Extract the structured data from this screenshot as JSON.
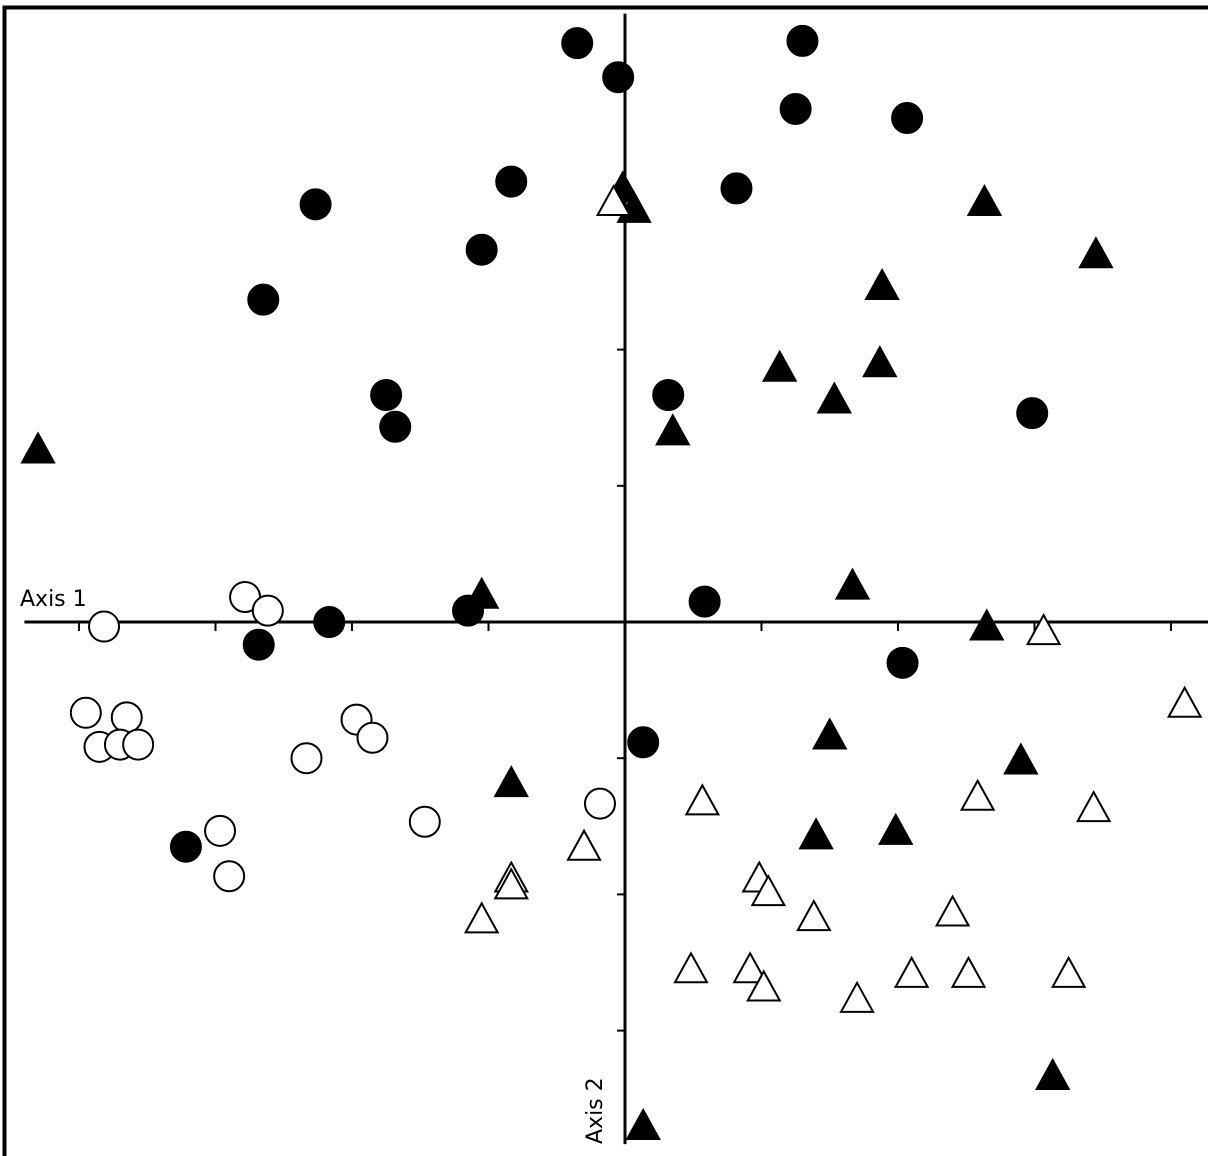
{
  "chart_data": {
    "type": "scatter",
    "title": "",
    "xlabel": "Axis 1",
    "ylabel": "Axis 2",
    "xlim": [
      -13.2,
      13.0
    ],
    "ylim": [
      -11.5,
      13.4
    ],
    "grid": false,
    "legend": "none",
    "colors": {
      "ink": "#000000",
      "paper": "#ffffff"
    },
    "series": [
      {
        "marker": "filled-circle",
        "points": [
          [
            -1.05,
            12.75
          ],
          [
            -0.15,
            12.0
          ],
          [
            3.9,
            12.8
          ],
          [
            3.75,
            11.3
          ],
          [
            6.2,
            11.1
          ],
          [
            -2.5,
            9.7
          ],
          [
            2.45,
            9.55
          ],
          [
            -6.8,
            9.2
          ],
          [
            -3.15,
            8.2
          ],
          [
            -7.95,
            7.1
          ],
          [
            -5.25,
            5.0
          ],
          [
            -5.05,
            4.3
          ],
          [
            0.95,
            5.0
          ],
          [
            8.95,
            4.6
          ],
          [
            -6.5,
            0.0
          ],
          [
            -8.05,
            -0.5
          ],
          [
            -3.45,
            0.25
          ],
          [
            1.75,
            0.45
          ],
          [
            6.1,
            -0.9
          ],
          [
            0.4,
            -2.65
          ],
          [
            -9.65,
            -4.95
          ]
        ]
      },
      {
        "marker": "open-circle",
        "points": [
          [
            -11.45,
            -0.1
          ],
          [
            -8.35,
            0.55
          ],
          [
            -7.85,
            0.25
          ],
          [
            -11.85,
            -2.0
          ],
          [
            -10.95,
            -2.1
          ],
          [
            -11.55,
            -2.75
          ],
          [
            -11.1,
            -2.7
          ],
          [
            -10.7,
            -2.7
          ],
          [
            -7.0,
            -3.0
          ],
          [
            -5.9,
            -2.15
          ],
          [
            -5.55,
            -2.55
          ],
          [
            -4.4,
            -4.4
          ],
          [
            -0.55,
            -4.0
          ],
          [
            -8.9,
            -4.6
          ],
          [
            -8.7,
            -5.6
          ]
        ]
      },
      {
        "marker": "filled-triangle",
        "points": [
          [
            -12.9,
            3.8
          ],
          [
            -0.05,
            9.55
          ],
          [
            0.2,
            9.1
          ],
          [
            7.9,
            9.25
          ],
          [
            10.35,
            8.1
          ],
          [
            5.65,
            7.4
          ],
          [
            3.4,
            5.6
          ],
          [
            5.6,
            5.7
          ],
          [
            4.6,
            4.9
          ],
          [
            1.05,
            4.2
          ],
          [
            5.0,
            0.8
          ],
          [
            -3.15,
            0.6
          ],
          [
            7.95,
            -0.1
          ],
          [
            -2.5,
            -3.55
          ],
          [
            4.5,
            -2.5
          ],
          [
            8.7,
            -3.05
          ],
          [
            4.2,
            -4.7
          ],
          [
            5.95,
            -4.6
          ],
          [
            9.4,
            -10.0
          ],
          [
            0.4,
            -11.1
          ]
        ]
      },
      {
        "marker": "open-triangle",
        "points": [
          [
            -0.25,
            9.25
          ],
          [
            9.2,
            -0.2
          ],
          [
            12.3,
            -1.8
          ],
          [
            1.7,
            -3.95
          ],
          [
            7.75,
            -3.85
          ],
          [
            10.3,
            -4.1
          ],
          [
            -0.9,
            -4.95
          ],
          [
            -2.5,
            -5.65
          ],
          [
            -2.5,
            -5.8
          ],
          [
            -3.15,
            -6.55
          ],
          [
            2.95,
            -5.65
          ],
          [
            3.15,
            -5.95
          ],
          [
            4.15,
            -6.5
          ],
          [
            7.2,
            -6.4
          ],
          [
            1.45,
            -7.65
          ],
          [
            2.75,
            -7.65
          ],
          [
            3.05,
            -8.05
          ],
          [
            5.1,
            -8.3
          ],
          [
            6.3,
            -7.75
          ],
          [
            7.55,
            -7.75
          ],
          [
            9.75,
            -7.75
          ]
        ]
      }
    ]
  }
}
